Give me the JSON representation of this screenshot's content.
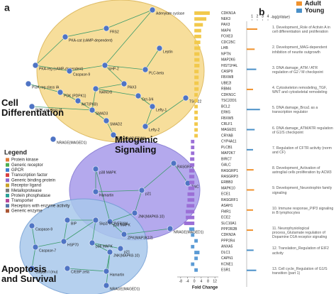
{
  "panel_labels": [
    "a",
    "b"
  ],
  "network": {
    "clusters": [
      {
        "label": "Cell Differentiation",
        "nodes": [
          "Adenylate cyclase",
          "FRS2",
          "PKA-cat (cAMP-dependent)",
          "PKA-reg (cAMP-dependent)",
          "Caspase-9",
          "SHP-2",
          "PLC-beta",
          "Leptin",
          "PI3K reg class IA",
          "PDK (PDPK1)",
          "AKT(PKB)",
          "PAX3",
          "NANOG",
          "Oct-3/4",
          "PI3K cat class IA",
          "SMAD3",
          "SMAD2",
          "Lefty-1",
          "Lefty-2",
          "TSC-22",
          "Skp2/TrCP/FBXW",
          "NRAGE(MAGED1)"
        ]
      },
      {
        "label": "Mitogenic Signaling",
        "nodes": [
          "p38 MAPK",
          "Hamartin",
          "p21",
          "RASGRF1",
          "TrkC",
          "JNK(MAPK8-10)",
          "p38 MAPK",
          "ZPK(MAP3K12)",
          "NRAGE(MAGED1)"
        ]
      },
      {
        "label": "Apoptosis and Survival",
        "nodes": [
          "Caspase-9",
          "Caspase-7",
          "BIP",
          "HSP70",
          "Skp2/TrCP/FBXW",
          "p38 MAPK",
          "p21",
          "Calpain I (mu)",
          "C/EBP zeta",
          "Hamartin",
          "JNK(MAPK8-10)",
          "NRAGE(MAGED1)"
        ]
      }
    ]
  },
  "legend": {
    "title": "Legend",
    "items": [
      "Protein kinase",
      "Generic receptor",
      "GPCR",
      "Transcription factor",
      "Generic binding protein",
      "Receptor ligand",
      "Metalloprotease",
      "Protein phosphatase",
      "Transporter",
      "Receptors with enzyme activity",
      "Generic enzyme"
    ]
  },
  "chart_data": [
    {
      "type": "bar",
      "orientation": "horizontal",
      "categories": [
        "CDKN1A",
        "NEK3",
        "PAX3",
        "MAP4",
        "FOXE3",
        "CDC25C",
        "LHB",
        "NPTN",
        "MAP2K6",
        "HIST1H4L",
        "CASP9",
        "FBXW8",
        "UBE2I",
        "RBM4",
        "CDKN1C",
        "TSC22D1",
        "BCL2",
        "ERK5",
        "FBXW5",
        "CRLF1",
        "MAGED1",
        "CRYAB",
        "CYP4A11",
        "PLCB1",
        "MAP2K7",
        "BIRC7",
        "GALC",
        "RASGRP1",
        "RASGRP3",
        "ERBB3",
        "MAPK10",
        "ECE1",
        "RASGRF1",
        "ASAH1",
        "FMR1",
        "ECE2",
        "SLC10A1",
        "PPP2R2B",
        "CDKN2A",
        "PPP2R4",
        "ANXA5",
        "DLC1",
        "CAPN1",
        "KCNE1",
        "ESR1"
      ],
      "values": [
        9,
        7,
        5,
        4,
        4,
        3.5,
        3.5,
        3,
        3,
        3,
        2.5,
        2.5,
        2.5,
        2.5,
        2,
        2,
        2,
        2,
        2,
        2,
        2,
        2,
        -2,
        -2,
        -2,
        -2.5,
        -2.5,
        -3,
        -3,
        -3,
        -3.5,
        -4,
        -4,
        -4.5,
        -5,
        -5,
        -6,
        -3,
        -2,
        2,
        -2,
        3,
        2,
        -2,
        2
      ],
      "colors": [
        "#f2c94c",
        "#f2c94c",
        "#f2c94c",
        "#f2c94c",
        "#f2c94c",
        "#f2c94c",
        "#f2c94c",
        "#f2c94c",
        "#f2c94c",
        "#f2c94c",
        "#f2c94c",
        "#f2c94c",
        "#f2c94c",
        "#f2c94c",
        "#f2c94c",
        "#f2c94c",
        "#f2c94c",
        "#f2c94c",
        "#f2c94c",
        "#f2c94c",
        "#f2c94c",
        "#f2c94c",
        "#9b6fd6",
        "#9b6fd6",
        "#9b6fd6",
        "#9b6fd6",
        "#9b6fd6",
        "#9b6fd6",
        "#9b6fd6",
        "#9b6fd6",
        "#9b6fd6",
        "#9b6fd6",
        "#9b6fd6",
        "#9b6fd6",
        "#9b6fd6",
        "#9b6fd6",
        "#9b6fd6",
        "#5b9bd5",
        "#5b9bd5",
        "#5b9bd5",
        "#5b9bd5",
        "#5b9bd5",
        "#5b9bd5",
        "#5b9bd5",
        "#5b9bd5"
      ],
      "xlabel": "Fold Change",
      "xlim": [
        -10,
        14
      ],
      "xticks": [
        -8,
        -4,
        0,
        4,
        8,
        12
      ]
    },
    {
      "type": "bar",
      "orientation": "horizontal",
      "categories": [
        "1. Development_Role of Activin A in cell differentiation and proliferation",
        "2. Development_MAG-dependent inhibition of neurite outgrowth",
        "3. DNA damage_ATM / ATR regulation of G2 / M checkpoint",
        "4. Cytoskeleton remodeling_TGF, WNT and cytoskeletal remodeling",
        "5. DNA damage_Brca1 as a transcription regulator",
        "6. DNA damage_ATM/ATR regulation of G1/S checkpoint",
        "7. Regulation of CFTR activity (norm and CF)",
        "8. Development_Activation of astroglial cells proliferation by ACM3",
        "9. Development_Neurotrophin family signaling",
        "10. Immune response_PIP3 signaling in B lymphocytes",
        "11. Neurophysiological process_Glutamate regulation of Dopamine D1A receptor signaling",
        "12. Translation_Regulation of EIF2 activity",
        "13. Cell cycle_Regulation of G1/S transition (part 1)"
      ],
      "series": [
        {
          "name": "Adult",
          "color": "#f0922e",
          "values": [
            2,
            1.5,
            null,
            1.2,
            null,
            null,
            null,
            1.3,
            1.4,
            1.2,
            1.2,
            null,
            null
          ]
        },
        {
          "name": "Young",
          "color": "#4a90c8",
          "values": [
            null,
            null,
            1.8,
            null,
            2.5,
            1.5,
            1.2,
            null,
            null,
            null,
            null,
            1.3,
            1.8
          ]
        }
      ],
      "xlabel": "-log(pValue)",
      "xlim": [
        0,
        4
      ],
      "xticks": [
        1,
        2,
        3,
        4
      ]
    }
  ]
}
